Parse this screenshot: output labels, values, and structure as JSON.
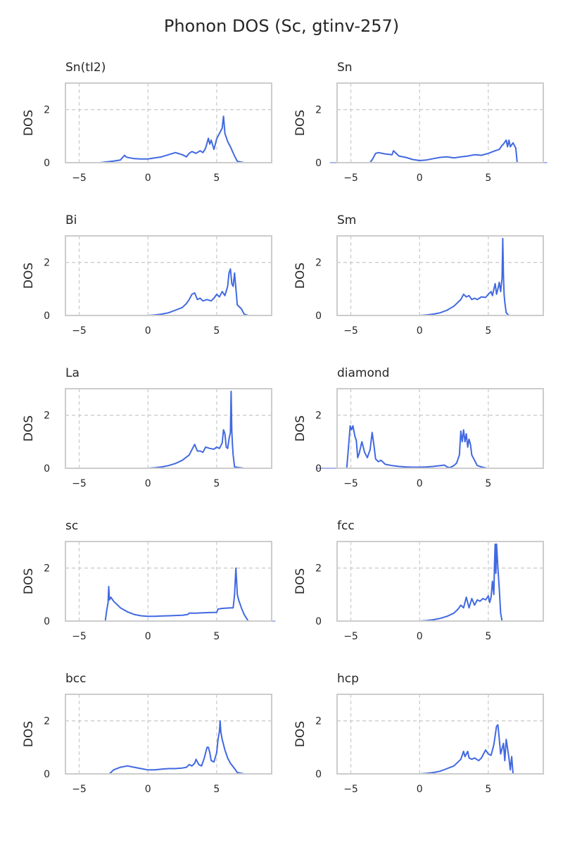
{
  "figure": {
    "title": "Phonon DOS (Sc, gtinv-257)"
  },
  "chart_data": [
    {
      "type": "line",
      "title": "Sn(tI2)",
      "xlabel": "",
      "ylabel": "DOS",
      "xlim": [
        -6,
        9
      ],
      "ylim": [
        0,
        3
      ],
      "xticks": [
        -5,
        0,
        5
      ],
      "yticks": [
        0,
        2
      ],
      "grid": true,
      "series": [
        {
          "color": "#4169e1",
          "x": [
            -4.5,
            -3.5,
            -3.0,
            -2.5,
            -2.0,
            -1.7,
            -1.6,
            -1.5,
            -1.0,
            -0.5,
            0,
            0.5,
            1.0,
            1.5,
            2.0,
            2.5,
            2.8,
            3.0,
            3.2,
            3.5,
            3.8,
            4.0,
            4.2,
            4.4,
            4.5,
            4.6,
            4.8,
            5.0,
            5.2,
            5.4,
            5.5,
            5.6,
            5.8,
            6.0,
            6.3,
            6.5,
            7.0,
            7.5
          ],
          "y": [
            0,
            0,
            0.03,
            0.06,
            0.1,
            0.28,
            0.22,
            0.2,
            0.15,
            0.14,
            0.14,
            0.18,
            0.22,
            0.3,
            0.38,
            0.3,
            0.22,
            0.35,
            0.42,
            0.35,
            0.45,
            0.38,
            0.55,
            0.92,
            0.7,
            0.85,
            0.5,
            0.9,
            1.1,
            1.3,
            1.75,
            1.1,
            0.8,
            0.6,
            0.25,
            0.05,
            0,
            0
          ]
        }
      ]
    },
    {
      "type": "line",
      "title": "Sn",
      "xlabel": "",
      "ylabel": "DOS",
      "xlim": [
        -6,
        9
      ],
      "ylim": [
        0,
        3
      ],
      "xticks": [
        -5,
        0,
        5
      ],
      "yticks": [
        0,
        2
      ],
      "grid": true,
      "series": [
        {
          "color": "#4169e1",
          "x": [
            -5,
            -3.6,
            -3.4,
            -3.2,
            -3.0,
            -2.5,
            -2.0,
            -1.9,
            -1.5,
            -1.0,
            -0.5,
            0,
            0.5,
            1.0,
            1.5,
            2.0,
            2.5,
            3.0,
            3.5,
            4.0,
            4.5,
            5.0,
            5.5,
            5.8,
            6.0,
            6.1,
            6.3,
            6.4,
            6.5,
            6.6,
            6.8,
            7.0,
            7.1,
            8
          ],
          "y": [
            0,
            0,
            0.15,
            0.35,
            0.38,
            0.33,
            0.3,
            0.45,
            0.25,
            0.2,
            0.12,
            0.08,
            0.1,
            0.15,
            0.2,
            0.22,
            0.18,
            0.22,
            0.25,
            0.3,
            0.28,
            0.35,
            0.45,
            0.5,
            0.65,
            0.7,
            0.85,
            0.6,
            0.85,
            0.6,
            0.75,
            0.55,
            0,
            0
          ]
        }
      ]
    },
    {
      "type": "line",
      "title": "Bi",
      "xlabel": "",
      "ylabel": "DOS",
      "xlim": [
        -6,
        9
      ],
      "ylim": [
        0,
        3
      ],
      "xticks": [
        -5,
        0,
        5
      ],
      "yticks": [
        0,
        2
      ],
      "grid": true,
      "series": [
        {
          "color": "#4169e1",
          "x": [
            0,
            0.5,
            1.0,
            1.5,
            2.0,
            2.5,
            2.8,
            3.0,
            3.2,
            3.4,
            3.6,
            3.8,
            4.0,
            4.3,
            4.6,
            4.8,
            5.0,
            5.2,
            5.4,
            5.6,
            5.8,
            5.9,
            6.0,
            6.1,
            6.2,
            6.3,
            6.5,
            6.8,
            7.0,
            7.3
          ],
          "y": [
            0,
            0.02,
            0.05,
            0.1,
            0.2,
            0.3,
            0.45,
            0.6,
            0.8,
            0.85,
            0.6,
            0.65,
            0.55,
            0.6,
            0.55,
            0.65,
            0.8,
            0.7,
            0.9,
            0.75,
            1.1,
            1.6,
            1.75,
            1.2,
            1.1,
            1.6,
            0.4,
            0.25,
            0.05,
            0
          ]
        }
      ]
    },
    {
      "type": "line",
      "title": "Sm",
      "xlabel": "",
      "ylabel": "DOS",
      "xlim": [
        -6,
        9
      ],
      "ylim": [
        0,
        3
      ],
      "xticks": [
        -5,
        0,
        5
      ],
      "yticks": [
        0,
        2
      ],
      "grid": true,
      "series": [
        {
          "color": "#4169e1",
          "x": [
            0,
            0.5,
            1.0,
            1.5,
            2.0,
            2.5,
            3.0,
            3.2,
            3.4,
            3.6,
            3.8,
            4.0,
            4.2,
            4.5,
            4.8,
            5.0,
            5.2,
            5.3,
            5.5,
            5.6,
            5.7,
            5.8,
            5.9,
            6.0,
            6.05,
            6.1,
            6.15,
            6.2,
            6.3,
            6.5,
            7.0
          ],
          "y": [
            0,
            0.02,
            0.05,
            0.1,
            0.2,
            0.35,
            0.6,
            0.8,
            0.7,
            0.75,
            0.6,
            0.65,
            0.6,
            0.7,
            0.68,
            0.8,
            0.9,
            0.75,
            1.2,
            0.8,
            1.0,
            1.25,
            0.9,
            1.4,
            2.9,
            1.5,
            0.8,
            0.5,
            0.1,
            0,
            0
          ]
        }
      ]
    },
    {
      "type": "line",
      "title": "La",
      "xlabel": "",
      "ylabel": "DOS",
      "xlim": [
        -6,
        9
      ],
      "ylim": [
        0,
        3
      ],
      "xticks": [
        -5,
        0,
        5
      ],
      "yticks": [
        0,
        2
      ],
      "grid": true,
      "series": [
        {
          "color": "#4169e1",
          "x": [
            0,
            0.5,
            1.0,
            1.5,
            2.0,
            2.5,
            3.0,
            3.2,
            3.4,
            3.6,
            3.8,
            4.0,
            4.2,
            4.5,
            4.8,
            5.0,
            5.2,
            5.4,
            5.5,
            5.6,
            5.7,
            5.8,
            5.9,
            6.0,
            6.05,
            6.1,
            6.15,
            6.2,
            6.3,
            7.0
          ],
          "y": [
            0,
            0.02,
            0.05,
            0.1,
            0.18,
            0.3,
            0.5,
            0.7,
            0.9,
            0.65,
            0.65,
            0.6,
            0.8,
            0.75,
            0.72,
            0.8,
            0.75,
            0.95,
            1.45,
            1.3,
            0.8,
            0.75,
            1.1,
            1.35,
            2.9,
            1.4,
            0.9,
            0.5,
            0.05,
            0
          ]
        }
      ]
    },
    {
      "type": "line",
      "title": "diamond",
      "xlabel": "",
      "ylabel": "DOS",
      "xlim": [
        -6,
        9
      ],
      "ylim": [
        0,
        3
      ],
      "xticks": [
        -5,
        0,
        5
      ],
      "yticks": [
        0,
        2
      ],
      "grid": true,
      "series": [
        {
          "color": "#4169e1",
          "x": [
            -6,
            -5.3,
            -5.2,
            -5.05,
            -4.95,
            -4.85,
            -4.7,
            -4.6,
            -4.5,
            -4.4,
            -4.2,
            -4.0,
            -3.8,
            -3.6,
            -3.45,
            -3.3,
            -3.2,
            -3.0,
            -2.8,
            -2.5,
            -2.0,
            -1.5,
            -1.0,
            -0.5,
            0,
            0.5,
            1.0,
            1.5,
            1.8,
            2.0,
            2.2,
            2.5,
            2.7,
            2.9,
            3.0,
            3.1,
            3.2,
            3.3,
            3.4,
            3.5,
            3.6,
            3.7,
            3.8,
            4.0,
            4.2,
            4.5,
            4.9,
            5.0
          ],
          "y": [
            0,
            0,
            0.6,
            1.6,
            1.45,
            1.6,
            1.2,
            1.05,
            0.4,
            0.55,
            1.0,
            0.6,
            0.4,
            0.7,
            1.35,
            0.8,
            0.35,
            0.25,
            0.3,
            0.15,
            0.1,
            0.07,
            0.05,
            0.04,
            0.04,
            0.05,
            0.07,
            0.1,
            0.12,
            0.05,
            0.02,
            0.1,
            0.2,
            0.5,
            1.4,
            1.0,
            1.45,
            1.0,
            1.3,
            0.8,
            1.1,
            0.9,
            0.5,
            0.3,
            0.1,
            0.05,
            0,
            0
          ]
        }
      ]
    },
    {
      "type": "line",
      "title": "sc",
      "xlabel": "",
      "ylabel": "DOS",
      "xlim": [
        -6,
        9
      ],
      "ylim": [
        0,
        3
      ],
      "xticks": [
        -5,
        0,
        5
      ],
      "yticks": [
        0,
        2
      ],
      "grid": true,
      "series": [
        {
          "color": "#4169e1",
          "x": [
            -4,
            -3.1,
            -3.0,
            -2.9,
            -2.85,
            -2.8,
            -2.7,
            -2.5,
            -2.0,
            -1.5,
            -1.0,
            -0.5,
            0,
            0.5,
            1.0,
            1.5,
            2.0,
            2.5,
            2.9,
            3.0,
            3.5,
            4.0,
            4.5,
            5.0,
            5.1,
            5.3,
            5.5,
            6.0,
            6.2,
            6.3,
            6.4,
            6.5,
            6.6,
            6.8,
            7.0,
            7.3,
            8
          ],
          "y": [
            0,
            0,
            0.4,
            0.7,
            1.3,
            0.8,
            0.9,
            0.75,
            0.5,
            0.35,
            0.25,
            0.2,
            0.18,
            0.18,
            0.19,
            0.2,
            0.21,
            0.22,
            0.25,
            0.3,
            0.3,
            0.31,
            0.32,
            0.33,
            0.45,
            0.47,
            0.48,
            0.5,
            0.5,
            1.0,
            2.0,
            1.0,
            0.8,
            0.5,
            0.25,
            0,
            0
          ]
        }
      ]
    },
    {
      "type": "line",
      "title": "fcc",
      "xlabel": "",
      "ylabel": "DOS",
      "xlim": [
        -6,
        9
      ],
      "ylim": [
        0,
        3
      ],
      "xticks": [
        -5,
        0,
        5
      ],
      "yticks": [
        0,
        2
      ],
      "grid": true,
      "series": [
        {
          "color": "#4169e1",
          "x": [
            0,
            0.5,
            1.0,
            1.5,
            2.0,
            2.5,
            2.8,
            3.0,
            3.2,
            3.4,
            3.6,
            3.8,
            4.0,
            4.2,
            4.4,
            4.6,
            4.8,
            5.0,
            5.1,
            5.2,
            5.3,
            5.4,
            5.45,
            5.5,
            5.55,
            5.6,
            5.7,
            5.8,
            5.9,
            6.0,
            6.5
          ],
          "y": [
            0,
            0.02,
            0.05,
            0.1,
            0.18,
            0.3,
            0.45,
            0.6,
            0.5,
            0.9,
            0.5,
            0.85,
            0.6,
            0.8,
            0.75,
            0.85,
            0.8,
            0.95,
            0.7,
            0.9,
            1.5,
            1.0,
            2.2,
            2.9,
            1.8,
            2.9,
            2.0,
            1.2,
            0.3,
            0,
            0
          ]
        }
      ]
    },
    {
      "type": "line",
      "title": "bcc",
      "xlabel": "",
      "ylabel": "DOS",
      "xlim": [
        -6,
        9
      ],
      "ylim": [
        0,
        3
      ],
      "xticks": [
        -5,
        0,
        5
      ],
      "yticks": [
        0,
        2
      ],
      "grid": true,
      "series": [
        {
          "color": "#4169e1",
          "x": [
            -4,
            -2.8,
            -2.5,
            -2.0,
            -1.5,
            -1.0,
            -0.5,
            0,
            0.5,
            1.0,
            1.5,
            2.0,
            2.5,
            2.8,
            3.0,
            3.2,
            3.4,
            3.5,
            3.7,
            3.9,
            4.1,
            4.3,
            4.4,
            4.5,
            4.6,
            4.8,
            5.0,
            5.1,
            5.2,
            5.25,
            5.3,
            5.4,
            5.6,
            5.8,
            6.0,
            6.3,
            6.5,
            7.0
          ],
          "y": [
            0,
            0,
            0.15,
            0.25,
            0.3,
            0.25,
            0.2,
            0.15,
            0.15,
            0.18,
            0.2,
            0.2,
            0.22,
            0.25,
            0.35,
            0.3,
            0.4,
            0.55,
            0.35,
            0.3,
            0.6,
            1.0,
            1.0,
            0.8,
            0.5,
            0.45,
            0.8,
            1.3,
            1.6,
            2.0,
            1.6,
            1.3,
            0.9,
            0.6,
            0.4,
            0.2,
            0.05,
            0
          ]
        }
      ]
    },
    {
      "type": "line",
      "title": "hcp",
      "xlabel": "",
      "ylabel": "DOS",
      "xlim": [
        -6,
        9
      ],
      "ylim": [
        0,
        3
      ],
      "xticks": [
        -5,
        0,
        5
      ],
      "yticks": [
        0,
        2
      ],
      "grid": true,
      "series": [
        {
          "color": "#4169e1",
          "x": [
            0,
            0.5,
            1.0,
            1.5,
            2.0,
            2.5,
            3.0,
            3.2,
            3.3,
            3.5,
            3.6,
            3.8,
            4.0,
            4.3,
            4.5,
            4.8,
            5.0,
            5.2,
            5.4,
            5.6,
            5.7,
            5.8,
            5.9,
            6.1,
            6.2,
            6.3,
            6.5,
            6.6,
            6.7,
            6.8,
            7.0,
            7.5
          ],
          "y": [
            0,
            0.02,
            0.05,
            0.1,
            0.2,
            0.3,
            0.55,
            0.85,
            0.65,
            0.85,
            0.6,
            0.55,
            0.6,
            0.5,
            0.6,
            0.9,
            0.75,
            0.7,
            1.1,
            1.8,
            1.85,
            1.3,
            0.75,
            1.15,
            0.5,
            1.3,
            0.6,
            0.15,
            0.65,
            0,
            0,
            0
          ]
        }
      ]
    }
  ]
}
